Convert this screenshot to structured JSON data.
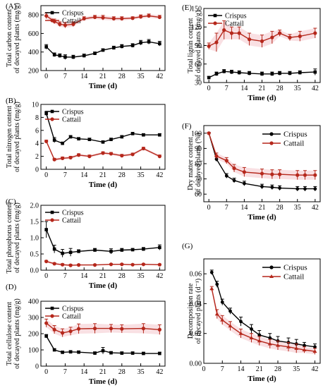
{
  "colors": {
    "crispus": "#000000",
    "cattail": "#b5271b",
    "cattail_band": "#f4c6cc"
  },
  "chart_data": [
    {
      "id": "A",
      "panel_label": "(A)",
      "type": "line",
      "ylabel_lines": [
        "Total carbon content",
        "of decayed plants (mg/g)"
      ],
      "xlabel": "Time (d)",
      "xlim": [
        -2,
        44
      ],
      "ylim": [
        200,
        900
      ],
      "xticks": [
        0,
        7,
        14,
        21,
        28,
        35,
        42
      ],
      "yticks": [
        200,
        400,
        600,
        800
      ],
      "legend": [
        "Crispus",
        "Cattail"
      ],
      "legend_position": "top-left",
      "series": [
        {
          "name": "Crispus",
          "x": [
            0,
            3,
            5,
            7,
            10,
            14,
            18,
            21,
            25,
            28,
            32,
            35,
            38,
            42
          ],
          "y": [
            455,
            370,
            360,
            345,
            345,
            360,
            385,
            420,
            445,
            460,
            470,
            500,
            510,
            490
          ],
          "err": [
            25,
            20,
            20,
            25,
            20,
            18,
            15,
            15,
            18,
            20,
            20,
            25,
            25,
            25
          ]
        },
        {
          "name": "Cattail",
          "x": [
            0,
            3,
            5,
            7,
            10,
            14,
            18,
            21,
            25,
            28,
            32,
            35,
            38,
            42
          ],
          "y": [
            790,
            730,
            700,
            690,
            700,
            760,
            775,
            770,
            760,
            760,
            765,
            780,
            790,
            775
          ],
          "err": [
            30,
            25,
            25,
            30,
            25,
            20,
            20,
            25,
            20,
            20,
            15,
            20,
            20,
            20
          ]
        }
      ]
    },
    {
      "id": "B",
      "panel_label": "(B)",
      "type": "line",
      "ylabel_lines": [
        "Total nitrogen content",
        "of decayed plants (mg/g)"
      ],
      "xlabel": "Time (d)",
      "xlim": [
        -2,
        44
      ],
      "ylim": [
        0,
        10
      ],
      "xticks": [
        0,
        7,
        14,
        21,
        28,
        35,
        42
      ],
      "yticks": [
        0,
        2,
        4,
        6,
        8,
        10
      ],
      "legend": [
        "Crispus",
        "Cattail"
      ],
      "legend_position": "top-left",
      "series": [
        {
          "name": "Crispus",
          "x": [
            0,
            3,
            6,
            9,
            12,
            16,
            21,
            24,
            28,
            32,
            36,
            42
          ],
          "y": [
            8.6,
            4.5,
            4.0,
            5.0,
            4.7,
            4.6,
            4.2,
            4.6,
            5.0,
            5.5,
            5.3,
            5.3
          ],
          "err": [
            0.3,
            0.4,
            0.2,
            0.2,
            0.2,
            0.2,
            0.2,
            0.2,
            0.2,
            0.2,
            0.2,
            0.2
          ]
        },
        {
          "name": "Cattail",
          "x": [
            0,
            3,
            6,
            9,
            12,
            16,
            21,
            24,
            28,
            32,
            36,
            42
          ],
          "y": [
            4.3,
            1.5,
            1.7,
            1.8,
            2.2,
            2.0,
            2.5,
            2.4,
            2.1,
            2.3,
            3.2,
            2.0
          ],
          "err": [
            0.2,
            0.2,
            0.2,
            0.2,
            0.2,
            0.2,
            0.2,
            0.2,
            0.2,
            0.2,
            0.2,
            0.2
          ]
        }
      ]
    },
    {
      "id": "C",
      "panel_label": "(C)",
      "type": "line",
      "ylabel_lines": [
        "Total phosphorus content",
        "of decayed plants (mg/g)"
      ],
      "xlabel": "Time (d)",
      "xlim": [
        -2,
        44
      ],
      "ylim": [
        0,
        2.0
      ],
      "xticks": [
        0,
        7,
        14,
        21,
        28,
        35,
        42
      ],
      "yticks": [
        0.0,
        0.5,
        1.0,
        1.5,
        2.0
      ],
      "ytick_labels": [
        "0.0",
        "0.5",
        "1.0",
        "1.5",
        "2.0"
      ],
      "legend": [
        "Crispus",
        "Cattail"
      ],
      "legend_position": "top-left",
      "series": [
        {
          "name": "Crispus",
          "x": [
            0,
            3,
            6,
            9,
            12,
            18,
            24,
            28,
            32,
            36,
            42
          ],
          "y": [
            1.25,
            0.65,
            0.52,
            0.55,
            0.58,
            0.62,
            0.58,
            0.62,
            0.63,
            0.65,
            0.7
          ],
          "err": [
            0.25,
            0.12,
            0.12,
            0.12,
            0.05,
            0.05,
            0.08,
            0.05,
            0.04,
            0.05,
            0.08
          ]
        },
        {
          "name": "Cattail",
          "x": [
            0,
            3,
            6,
            9,
            12,
            18,
            24,
            28,
            32,
            36,
            42
          ],
          "y": [
            0.27,
            0.2,
            0.17,
            0.15,
            0.16,
            0.16,
            0.18,
            0.18,
            0.17,
            0.18,
            0.17
          ],
          "err": [
            0.03,
            0.03,
            0.03,
            0.03,
            0.02,
            0.02,
            0.02,
            0.02,
            0.02,
            0.02,
            0.02
          ]
        }
      ]
    },
    {
      "id": "D",
      "panel_label": "(D)",
      "type": "line",
      "ylabel_lines": [
        "Total cellulose content",
        "of decayed plants (mg/g)"
      ],
      "xlabel": "Time (d)",
      "xlim": [
        -2,
        44
      ],
      "ylim": [
        0,
        400
      ],
      "xticks": [
        0,
        7,
        14,
        21,
        28,
        35,
        42
      ],
      "yticks": [
        0,
        100,
        200,
        300,
        400
      ],
      "legend": [
        "Crispus",
        "Cattail"
      ],
      "legend_position": "top-left",
      "series": [
        {
          "name": "Crispus",
          "x": [
            0,
            3,
            6,
            9,
            12,
            18,
            21,
            24,
            28,
            32,
            36,
            42
          ],
          "y": [
            185,
            100,
            85,
            88,
            86,
            80,
            95,
            82,
            80,
            80,
            78,
            78
          ],
          "err": [
            10,
            8,
            8,
            8,
            8,
            8,
            20,
            8,
            8,
            8,
            8,
            8
          ]
        },
        {
          "name": "Cattail",
          "x": [
            0,
            3,
            6,
            9,
            12,
            18,
            24,
            28,
            36,
            42
          ],
          "y": [
            265,
            225,
            205,
            215,
            230,
            232,
            232,
            230,
            232,
            225
          ],
          "err": [
            25,
            25,
            25,
            25,
            30,
            30,
            25,
            25,
            30,
            30
          ]
        }
      ]
    },
    {
      "id": "E",
      "panel_label": "(E)",
      "type": "line",
      "ylabel_lines": [
        "Total lignin content",
        "of decayed plants (mg/g)"
      ],
      "xlabel": "Time (d)",
      "xlim": [
        -2,
        44
      ],
      "ylim": [
        30,
        150
      ],
      "xticks": [
        0,
        7,
        14,
        21,
        28,
        35,
        42
      ],
      "yticks": [
        30,
        60,
        90,
        120,
        150
      ],
      "legend": [
        "Crispus",
        "Cattail"
      ],
      "legend_position": "top-left",
      "series": [
        {
          "name": "Crispus",
          "x": [
            0,
            3,
            6,
            9,
            12,
            16,
            21,
            25,
            28,
            32,
            36,
            42
          ],
          "y": [
            38,
            44,
            48,
            47,
            46,
            45,
            44,
            44,
            45,
            45,
            46,
            47
          ],
          "err": [
            2,
            3,
            3,
            3,
            3,
            3,
            3,
            3,
            3,
            3,
            3,
            5
          ]
        },
        {
          "name": "Cattail",
          "x": [
            0,
            3,
            6,
            9,
            12,
            16,
            21,
            25,
            28,
            32,
            36,
            42
          ],
          "y": [
            89,
            95,
            115,
            110,
            110,
            100,
            97,
            103,
            110,
            103,
            105,
            110
          ],
          "err": [
            5,
            15,
            15,
            10,
            10,
            10,
            10,
            10,
            5,
            5,
            8,
            8
          ]
        }
      ]
    },
    {
      "id": "F",
      "panel_label": "(F)",
      "type": "line",
      "ylabel_lines": [
        "Dry matter content",
        "of decayed plants (%)"
      ],
      "xlabel": "Time (d)",
      "xlim": [
        -2,
        44
      ],
      "ylim": [
        55,
        105
      ],
      "xticks": [
        0,
        7,
        14,
        21,
        28,
        35,
        42
      ],
      "yticks": [
        60,
        70,
        80,
        90,
        100
      ],
      "legend": [
        "Crispus",
        "Cattail"
      ],
      "legend_position": "top-right",
      "series": [
        {
          "name": "Crispus",
          "x": [
            0,
            3,
            7,
            10,
            14,
            21,
            25,
            28,
            35,
            38,
            42
          ],
          "y": [
            100,
            83,
            72,
            69,
            67,
            65,
            64.5,
            64,
            63.5,
            63.5,
            63.5
          ],
          "err": [
            0.5,
            1.5,
            1.5,
            1.5,
            1.5,
            1.5,
            1.5,
            1.5,
            1.5,
            1.5,
            1.5
          ]
        },
        {
          "name": "Cattail",
          "x": [
            0,
            3,
            7,
            10,
            14,
            21,
            25,
            28,
            35,
            38,
            42
          ],
          "y": [
            100,
            85,
            82,
            77,
            74.5,
            73.5,
            73,
            73,
            72.5,
            72.5,
            72.5
          ],
          "err": [
            0.5,
            2,
            2,
            2.5,
            3,
            3,
            3,
            3,
            3,
            3,
            3
          ]
        }
      ]
    },
    {
      "id": "G",
      "panel_label": "(G)",
      "type": "line",
      "ylabel_lines": [
        "Decomposition rate",
        "of decayed plants (d⁻¹)"
      ],
      "xlabel": "Time (d)",
      "xlim": [
        0,
        44
      ],
      "ylim": [
        0,
        0.07
      ],
      "xticks": [
        0,
        7,
        14,
        21,
        28,
        35,
        42
      ],
      "yticks": [
        0.0,
        0.02,
        0.04,
        0.06
      ],
      "ytick_labels": [
        "0.00",
        "0.02",
        "0.04",
        "0.06"
      ],
      "legend": [
        "Crispus",
        "Cattail"
      ],
      "legend_position": "top-right",
      "series": [
        {
          "name": "Crispus",
          "x": [
            3,
            5,
            7,
            10,
            14,
            18,
            21,
            25,
            28,
            32,
            35,
            38,
            42
          ],
          "y": [
            0.061,
            0.053,
            0.041,
            0.035,
            0.028,
            0.023,
            0.019,
            0.017,
            0.015,
            0.014,
            0.013,
            0.012,
            0.011
          ],
          "err": [
            0.0015,
            0.002,
            0.002,
            0.002,
            0.003,
            0.003,
            0.003,
            0.003,
            0.003,
            0.003,
            0.003,
            0.002,
            0.002
          ]
        },
        {
          "name": "Cattail",
          "x": [
            3,
            5,
            7,
            10,
            14,
            18,
            21,
            25,
            28,
            32,
            35,
            38,
            42
          ],
          "y": [
            0.05,
            0.033,
            0.029,
            0.025,
            0.02,
            0.017,
            0.015,
            0.013,
            0.012,
            0.011,
            0.01,
            0.009,
            0.008
          ],
          "err": [
            0.0015,
            0.003,
            0.003,
            0.003,
            0.003,
            0.003,
            0.003,
            0.003,
            0.003,
            0.003,
            0.003,
            0.002,
            0.002
          ]
        }
      ]
    }
  ]
}
